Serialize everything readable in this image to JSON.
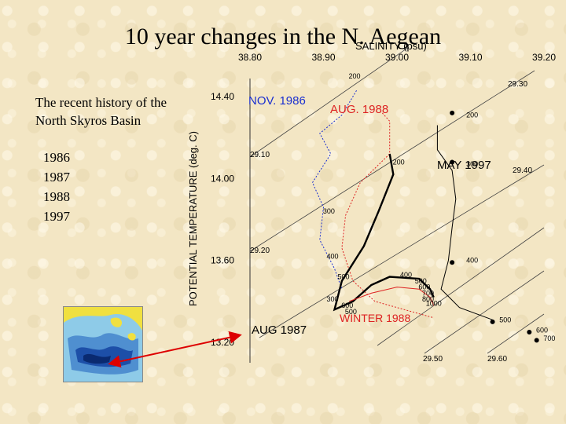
{
  "slide": {
    "title": "10 year changes in the N. Aegean",
    "subtitle_line1": "The recent history of the",
    "subtitle_line2": "North Skyros Basin",
    "years": [
      "1986",
      "1987",
      "1988",
      "1997"
    ]
  },
  "chart_data": {
    "type": "line",
    "title": "",
    "xlabel": "SALINITY (psu)",
    "ylabel": "POTENTIAL TEMPERATURE (deg. C)",
    "xlim": [
      38.8,
      39.2
    ],
    "ylim": [
      13.2,
      14.4
    ],
    "x_ticks": [
      "38.80",
      "38.90",
      "39.00",
      "39.10",
      "39.20"
    ],
    "y_ticks": [
      "14.40",
      "14.00",
      "13.60",
      "13.20"
    ],
    "density_contours": [
      "29.10",
      "29.20",
      "29.30",
      "29.40",
      "29.50",
      "29.60"
    ],
    "series": [
      {
        "name": "NOV. 1986",
        "color": "#1a2fd0",
        "style": "dotted",
        "points": [
          [
            38.945,
            14.43
          ],
          [
            38.925,
            14.31
          ],
          [
            38.895,
            14.22
          ],
          [
            38.91,
            14.12
          ],
          [
            38.885,
            13.98
          ],
          [
            38.9,
            13.86
          ],
          [
            38.895,
            13.7
          ],
          [
            38.915,
            13.56
          ],
          [
            38.925,
            13.46
          ]
        ]
      },
      {
        "name": "AUG. 1988",
        "color": "#dd2222",
        "style": "dotted",
        "points": [
          [
            38.98,
            14.32
          ],
          [
            38.99,
            14.28
          ],
          [
            38.99,
            14.12
          ],
          [
            38.95,
            13.98
          ],
          [
            38.93,
            13.82
          ],
          [
            38.925,
            13.66
          ],
          [
            38.94,
            13.5
          ],
          [
            38.97,
            13.4
          ],
          [
            39.01,
            13.36
          ],
          [
            39.05,
            13.32
          ]
        ]
      },
      {
        "name": "MAY 1997",
        "color": "#000000",
        "style": "thin",
        "points": [
          [
            39.055,
            14.26
          ],
          [
            39.055,
            14.14
          ],
          [
            39.075,
            14.04
          ],
          [
            39.08,
            13.9
          ],
          [
            39.075,
            13.76
          ],
          [
            39.07,
            13.6
          ],
          [
            39.06,
            13.46
          ],
          [
            39.085,
            13.37
          ],
          [
            39.13,
            13.31
          ]
        ]
      },
      {
        "name": "AUG 1987",
        "color": "#000000",
        "style": "thick",
        "points": [
          [
            38.99,
            14.12
          ],
          [
            38.995,
            14.02
          ],
          [
            38.975,
            13.84
          ],
          [
            38.955,
            13.67
          ],
          [
            38.925,
            13.5
          ],
          [
            38.915,
            13.36
          ],
          [
            38.94,
            13.4
          ],
          [
            38.965,
            13.48
          ],
          [
            38.99,
            13.52
          ],
          [
            39.03,
            13.51
          ],
          [
            39.045,
            13.46
          ],
          [
            39.05,
            13.42
          ]
        ]
      },
      {
        "name": "WINTER 1988",
        "color": "#dd2222",
        "style": "thin",
        "points": [
          [
            38.935,
            13.4
          ],
          [
            38.965,
            13.44
          ],
          [
            39.0,
            13.47
          ],
          [
            39.03,
            13.46
          ],
          [
            39.045,
            13.42
          ],
          [
            39.05,
            13.38
          ]
        ]
      }
    ],
    "depth_labels": [
      {
        "text": "200",
        "x": 38.93,
        "y": 14.5
      },
      {
        "text": "200",
        "x": 38.99,
        "y": 14.08
      },
      {
        "text": "300",
        "x": 38.895,
        "y": 13.84
      },
      {
        "text": "400",
        "x": 38.9,
        "y": 13.62
      },
      {
        "text": "500",
        "x": 38.915,
        "y": 13.52
      },
      {
        "text": "300",
        "x": 38.9,
        "y": 13.41
      },
      {
        "text": "600",
        "x": 38.92,
        "y": 13.38
      },
      {
        "text": "500",
        "x": 38.925,
        "y": 13.35
      },
      {
        "text": "400",
        "x": 39.0,
        "y": 13.53
      },
      {
        "text": "500",
        "x": 39.02,
        "y": 13.5
      },
      {
        "text": "600",
        "x": 39.025,
        "y": 13.47
      },
      {
        "text": "700",
        "x": 39.03,
        "y": 13.44
      },
      {
        "text": "800",
        "x": 39.03,
        "y": 13.41
      },
      {
        "text": "1000",
        "x": 39.035,
        "y": 13.39
      },
      {
        "text": "200",
        "x": 39.09,
        "y": 14.31
      },
      {
        "text": "300",
        "x": 39.09,
        "y": 14.07
      },
      {
        "text": "400",
        "x": 39.09,
        "y": 13.6
      },
      {
        "text": "500",
        "x": 39.135,
        "y": 13.31
      },
      {
        "text": "600",
        "x": 39.185,
        "y": 13.26
      },
      {
        "text": "700",
        "x": 39.195,
        "y": 13.22
      }
    ],
    "markers": [
      {
        "x": 39.075,
        "y": 14.32
      },
      {
        "x": 39.075,
        "y": 14.08
      },
      {
        "x": 39.075,
        "y": 13.59
      },
      {
        "x": 39.13,
        "y": 13.3
      },
      {
        "x": 39.18,
        "y": 13.25
      },
      {
        "x": 39.19,
        "y": 13.21
      }
    ],
    "annotations": [
      {
        "text": "NOV. 1986",
        "color": "#1a2fd0"
      },
      {
        "text": "AUG. 1988",
        "color": "#dd2222"
      },
      {
        "text": "MAY 1997",
        "color": "#000000"
      },
      {
        "text": "AUG 1987",
        "color": "#000000"
      },
      {
        "text": "WINTER 1988",
        "color": "#dd2222"
      }
    ],
    "colors": {
      "axis": "#333333",
      "contour": "#444444",
      "arrow": "#dd0000"
    }
  }
}
